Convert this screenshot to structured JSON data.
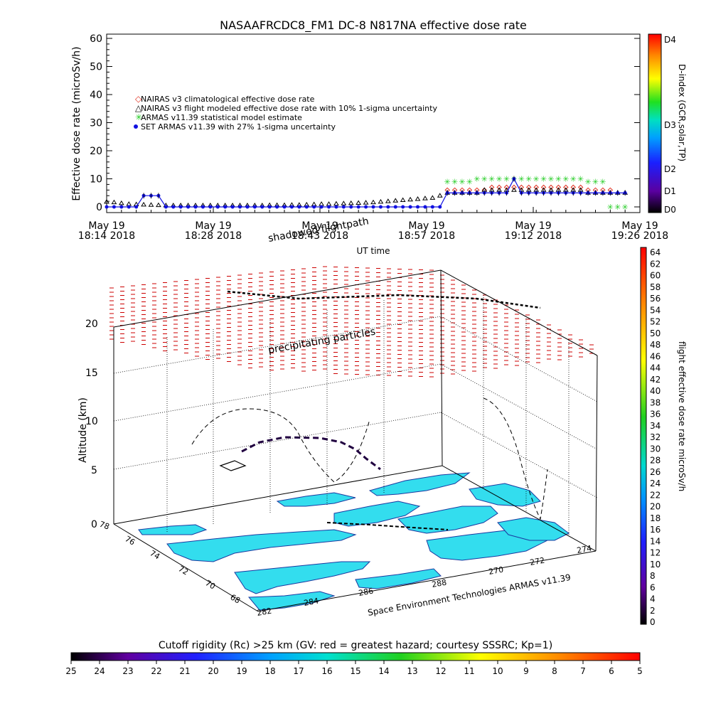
{
  "title": "NASAAFRCDC8_FM1 DC-8    N817NA effective dose rate",
  "colors": {
    "nairas_clim": "#e03020",
    "nairas_flight": "#000000",
    "armas_stat": "#22cc22",
    "set_armas": "#1010e0",
    "land": "#33ddee",
    "coast": "#1a3aa0",
    "particles": "#cc0000"
  },
  "chart_data": [
    {
      "type": "scatter",
      "title": "NASAAFRCDC8_FM1 DC-8    N817NA effective dose rate",
      "ylabel": "Effective dose rate (microSv/h)",
      "xlabel": "UT time",
      "ylim": [
        0,
        60
      ],
      "yticks": [
        0,
        10,
        20,
        30,
        40,
        50,
        60
      ],
      "xlim_minutes": [
        0,
        72
      ],
      "xtick_labels": [
        {
          "line1": "May 19",
          "line2": "18:14 2018"
        },
        {
          "line1": "May 19",
          "line2": "18:28 2018"
        },
        {
          "line1": "May 19",
          "line2": "18:43 2018"
        },
        {
          "line1": "May 19",
          "line2": "18:57 2018"
        },
        {
          "line1": "May 19",
          "line2": "19:12 2018"
        },
        {
          "line1": "May 19",
          "line2": "19:26 2018"
        }
      ],
      "legend_position": "top-left",
      "legend": [
        "NAIRAS v3 climatological effective dose rate",
        "NAIRAS v3 flight modeled effective dose rate with 10% 1-sigma uncertainty",
        "ARMAS v11.39 statistical model estimate",
        "SET ARMAS v11.39 with 27% 1-sigma uncertainty"
      ],
      "series": [
        {
          "name": "NAIRAS v3 climatological effective dose rate",
          "x": [
            46,
            47,
            48,
            49,
            50,
            51,
            52,
            53,
            54,
            55,
            56,
            57,
            58,
            59,
            60,
            61,
            62,
            63,
            64,
            65,
            66,
            67,
            68
          ],
          "y": [
            6,
            6,
            6,
            6,
            6,
            6,
            7,
            7,
            7,
            7,
            7,
            7,
            7,
            7,
            7,
            7,
            7,
            7,
            7,
            6,
            6,
            6,
            6
          ]
        },
        {
          "name": "NAIRAS v3 flight modeled effective dose rate with 10% 1-sigma uncertainty",
          "x": [
            0,
            1,
            2,
            3,
            4,
            5,
            6,
            7,
            8,
            9,
            10,
            11,
            12,
            13,
            14,
            15,
            16,
            17,
            18,
            19,
            20,
            21,
            22,
            23,
            24,
            25,
            26,
            27,
            28,
            29,
            30,
            31,
            32,
            33,
            34,
            35,
            36,
            37,
            38,
            39,
            40,
            41,
            42,
            43,
            44,
            45,
            46,
            47,
            48,
            49,
            50,
            51,
            52,
            53,
            54,
            55,
            56,
            57,
            58,
            59,
            60,
            61,
            62,
            63,
            64,
            65,
            66,
            67,
            68,
            69,
            70
          ],
          "y": [
            1.8,
            1.6,
            1.3,
            1,
            0.9,
            0.8,
            0.7,
            0.6,
            0.5,
            0.5,
            0.5,
            0.5,
            0.5,
            0.5,
            0.5,
            0.5,
            0.5,
            0.5,
            0.5,
            0.5,
            0.5,
            0.5,
            0.6,
            0.6,
            0.6,
            0.7,
            0.7,
            0.8,
            0.9,
            1,
            1,
            1.1,
            1.2,
            1.3,
            1.4,
            1.5,
            1.6,
            1.8,
            2,
            2.2,
            2.4,
            2.6,
            2.8,
            3,
            3.2,
            4,
            5,
            5,
            5,
            5,
            5,
            6,
            6,
            6,
            6,
            6,
            6,
            6,
            6,
            6,
            6,
            6,
            6,
            6,
            6,
            5,
            5,
            5,
            5,
            5,
            5
          ]
        },
        {
          "name": "ARMAS v11.39 statistical model estimate",
          "x": [
            46,
            47,
            48,
            49,
            50,
            51,
            52,
            53,
            54,
            55,
            56,
            57,
            58,
            59,
            60,
            61,
            62,
            63,
            64,
            65,
            66,
            67,
            68,
            69,
            70
          ],
          "y": [
            9,
            9,
            9,
            9,
            10,
            10,
            10,
            10,
            10,
            10,
            10,
            10,
            10,
            10,
            10,
            10,
            10,
            10,
            10,
            9,
            9,
            9,
            0,
            0,
            0
          ]
        },
        {
          "name": "SET ARMAS v11.39 with 27% 1-sigma uncertainty",
          "x": [
            0,
            1,
            2,
            3,
            4,
            5,
            6,
            7,
            8,
            9,
            10,
            11,
            12,
            13,
            14,
            15,
            16,
            17,
            18,
            19,
            20,
            21,
            22,
            23,
            24,
            25,
            26,
            27,
            28,
            29,
            30,
            31,
            32,
            33,
            34,
            35,
            36,
            37,
            38,
            39,
            40,
            41,
            42,
            43,
            44,
            45,
            46,
            47,
            48,
            49,
            50,
            51,
            52,
            53,
            54,
            55,
            56,
            57,
            58,
            59,
            60,
            61,
            62,
            63,
            64,
            65,
            66,
            67,
            68,
            69,
            70
          ],
          "y": [
            0,
            0,
            0,
            0,
            0,
            4,
            4,
            4,
            0,
            0,
            0,
            0,
            0,
            0,
            0,
            0,
            0,
            0,
            0,
            0,
            0,
            0,
            0,
            0,
            0,
            0,
            0,
            0,
            0,
            0,
            0,
            0,
            0,
            0,
            0,
            0,
            0,
            0,
            0,
            0,
            0,
            0,
            0,
            0,
            0,
            0,
            5,
            5,
            5,
            5,
            5,
            5,
            5,
            5,
            5,
            10,
            5,
            5,
            5,
            5,
            5,
            5,
            5,
            5,
            5,
            5,
            5,
            5,
            5,
            5,
            5
          ]
        }
      ]
    },
    {
      "type": "colorbar",
      "label": "D-index (GCR,solar,TP)",
      "ticks": [
        "D4",
        "D3",
        "D2",
        "D1",
        "D0"
      ]
    },
    {
      "type": "scatter",
      "zlabel": "Altitude (km)",
      "zticks": [
        "0",
        "5",
        "10",
        "15",
        "20"
      ],
      "lat_ticks": [
        "76",
        "74",
        "72",
        "70",
        "68"
      ],
      "lat_top_tick": "78",
      "lon_ticks": [
        "282",
        "284",
        "286",
        "288",
        "270",
        "272",
        "274"
      ],
      "annotations": [
        "shadowed flightpath",
        "precipitating particles",
        "Space Environment Technologies ARMAS v11.39"
      ],
      "colorbar_label": "flight effective dose rate microSv/h",
      "colorbar_ticks": [
        "64",
        "62",
        "60",
        "58",
        "56",
        "54",
        "52",
        "50",
        "48",
        "46",
        "44",
        "42",
        "40",
        "38",
        "36",
        "34",
        "32",
        "30",
        "28",
        "26",
        "24",
        "22",
        "20",
        "18",
        "16",
        "14",
        "12",
        "10",
        "8",
        "6",
        "4",
        "2",
        "0"
      ]
    },
    {
      "type": "colorbar",
      "label": "Cutoff rigidity (Rc) >25 km (GV: red = greatest hazard; courtesy SSSRC; Kp=1)",
      "ticks": [
        "25",
        "24",
        "23",
        "22",
        "21",
        "20",
        "19",
        "18",
        "17",
        "16",
        "15",
        "14",
        "13",
        "12",
        "11",
        "10",
        "9",
        "8",
        "7",
        "6",
        "5"
      ]
    }
  ]
}
